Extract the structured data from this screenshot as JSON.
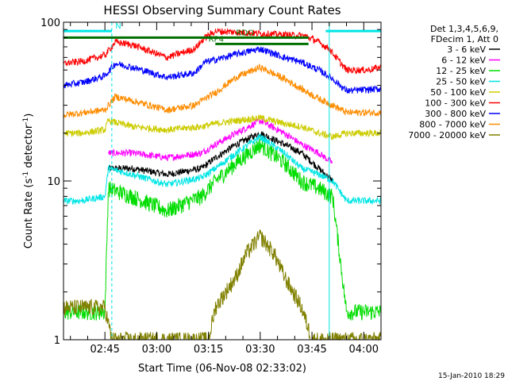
{
  "chart_data": {
    "type": "line",
    "title": "HESSI Observing Summary Count Rates",
    "xlabel": "Start Time (06-Nov-08 02:33:02)",
    "ylabel_main": "Count Rate (s",
    "ylabel_sup": "-1",
    "ylabel_tail": " detector",
    "ylabel_end": ")",
    "x_unit": "minutes after 02:33:02",
    "xlim": [
      0,
      92
    ],
    "ylim": [
      1,
      100
    ],
    "yscale": "log",
    "grid": false,
    "legend_position": "right",
    "x_ticks": [
      {
        "x": 12,
        "label": "02:45"
      },
      {
        "x": 27,
        "label": "03:00"
      },
      {
        "x": 42,
        "label": "03:15"
      },
      {
        "x": 57,
        "label": "03:30"
      },
      {
        "x": 72,
        "label": "03:45"
      },
      {
        "x": 87,
        "label": "04:00"
      }
    ],
    "y_ticks": [
      {
        "y": 1,
        "label": "1"
      },
      {
        "y": 10,
        "label": "10"
      },
      {
        "y": 100,
        "label": "100"
      }
    ],
    "legend_header": [
      "Det 1,3,4,5,6,9,",
      "FDecim 1, Att 0"
    ],
    "series": [
      {
        "name": "3 - 6 keV",
        "color": "#000000",
        "x": [
          13,
          20,
          30,
          40,
          44,
          50,
          57,
          64,
          69,
          74,
          78
        ],
        "y": [
          12,
          12,
          11,
          12,
          14,
          17,
          20,
          17,
          15,
          12,
          10
        ]
      },
      {
        "name": "6 - 12 keV",
        "color": "#ff00ff",
        "x": [
          13,
          20,
          30,
          40,
          44,
          50,
          57,
          64,
          69,
          74,
          78
        ],
        "y": [
          15,
          15,
          14,
          15,
          17,
          20,
          24,
          20,
          17,
          15,
          13
        ]
      },
      {
        "name": "12 - 25 keV",
        "color": "#00dd00",
        "x": [
          0,
          5,
          12,
          13,
          20,
          30,
          40,
          44,
          50,
          57,
          64,
          69,
          74,
          78,
          82,
          92
        ],
        "y": [
          1.5,
          1.5,
          1.5,
          9,
          8,
          6.5,
          8,
          10,
          13,
          17,
          13,
          10,
          9,
          8,
          1.5,
          1.5
        ]
      },
      {
        "name": "25 - 50 keV",
        "color": "#00e5e5",
        "x": [
          0,
          5,
          12,
          13,
          20,
          30,
          40,
          44,
          50,
          57,
          64,
          69,
          74,
          78,
          82,
          92
        ],
        "y": [
          7.5,
          7.5,
          8,
          12,
          11,
          9.5,
          10.5,
          12,
          15,
          19,
          15,
          12,
          11,
          10,
          7.5,
          7.5
        ]
      },
      {
        "name": "50 - 100 keV",
        "color": "#cccc00",
        "x": [
          0,
          5,
          12,
          13,
          20,
          30,
          40,
          44,
          50,
          57,
          64,
          69,
          74,
          78,
          82,
          92
        ],
        "y": [
          20,
          20,
          21,
          24,
          22,
          21,
          22,
          23,
          24,
          25,
          23,
          22,
          20,
          19,
          20,
          20
        ]
      },
      {
        "name": "100 - 300 keV",
        "color": "#ff0000",
        "x": [
          0,
          6,
          12,
          15,
          20,
          30,
          38,
          41,
          44,
          70,
          73,
          77,
          82,
          88,
          92
        ],
        "y": [
          55,
          57,
          62,
          75,
          72,
          60,
          68,
          80,
          88,
          82,
          77,
          68,
          50,
          50,
          52
        ]
      },
      {
        "name": "300 - 800 keV",
        "color": "#0000ff",
        "x": [
          0,
          6,
          12,
          15,
          20,
          30,
          38,
          41,
          44,
          50,
          57,
          64,
          69,
          74,
          78,
          82,
          92
        ],
        "y": [
          40,
          42,
          46,
          55,
          52,
          45,
          48,
          56,
          58,
          63,
          68,
          60,
          56,
          50,
          44,
          37,
          38
        ]
      },
      {
        "name": "800 - 7000 keV",
        "color": "#ff8c00",
        "x": [
          0,
          6,
          12,
          15,
          20,
          30,
          38,
          41,
          44,
          50,
          57,
          64,
          69,
          74,
          78,
          82,
          92
        ],
        "y": [
          26,
          27,
          28,
          34,
          32,
          28,
          30,
          33,
          36,
          45,
          52,
          44,
          38,
          33,
          30,
          27,
          27
        ]
      },
      {
        "name": "7000 - 20000 keV",
        "color": "#808000",
        "x": [
          0,
          5,
          12,
          14,
          42,
          44,
          50,
          53,
          57,
          61,
          64,
          69,
          72,
          92
        ],
        "y": [
          1.6,
          1.6,
          1.6,
          1,
          1,
          1.6,
          2.5,
          3.5,
          4.5,
          3.5,
          2.5,
          1.6,
          1,
          1
        ]
      }
    ],
    "flags": [
      {
        "label": "N",
        "color": "#00e5e5",
        "y": 88,
        "segments": [
          [
            0,
            14
          ],
          [
            76,
            92
          ]
        ]
      },
      {
        "label": "RDO",
        "color": "#007000",
        "y": 80,
        "segments": [
          [
            0,
            71
          ]
        ],
        "label_x": 50
      },
      {
        "label": "RP4",
        "color": "#007000",
        "y": 73,
        "segments": [
          [
            44,
            71
          ]
        ],
        "label_x": 42
      }
    ],
    "markers": [
      {
        "x": 14,
        "color": "#00e5e5",
        "style": "dashed"
      },
      {
        "x": 77,
        "color": "#00e5e5",
        "style": "solid"
      },
      {
        "x": 92,
        "color": "#00e5e5",
        "style": "dashed"
      }
    ],
    "timestamp": "15-Jan-2010 18:29"
  }
}
